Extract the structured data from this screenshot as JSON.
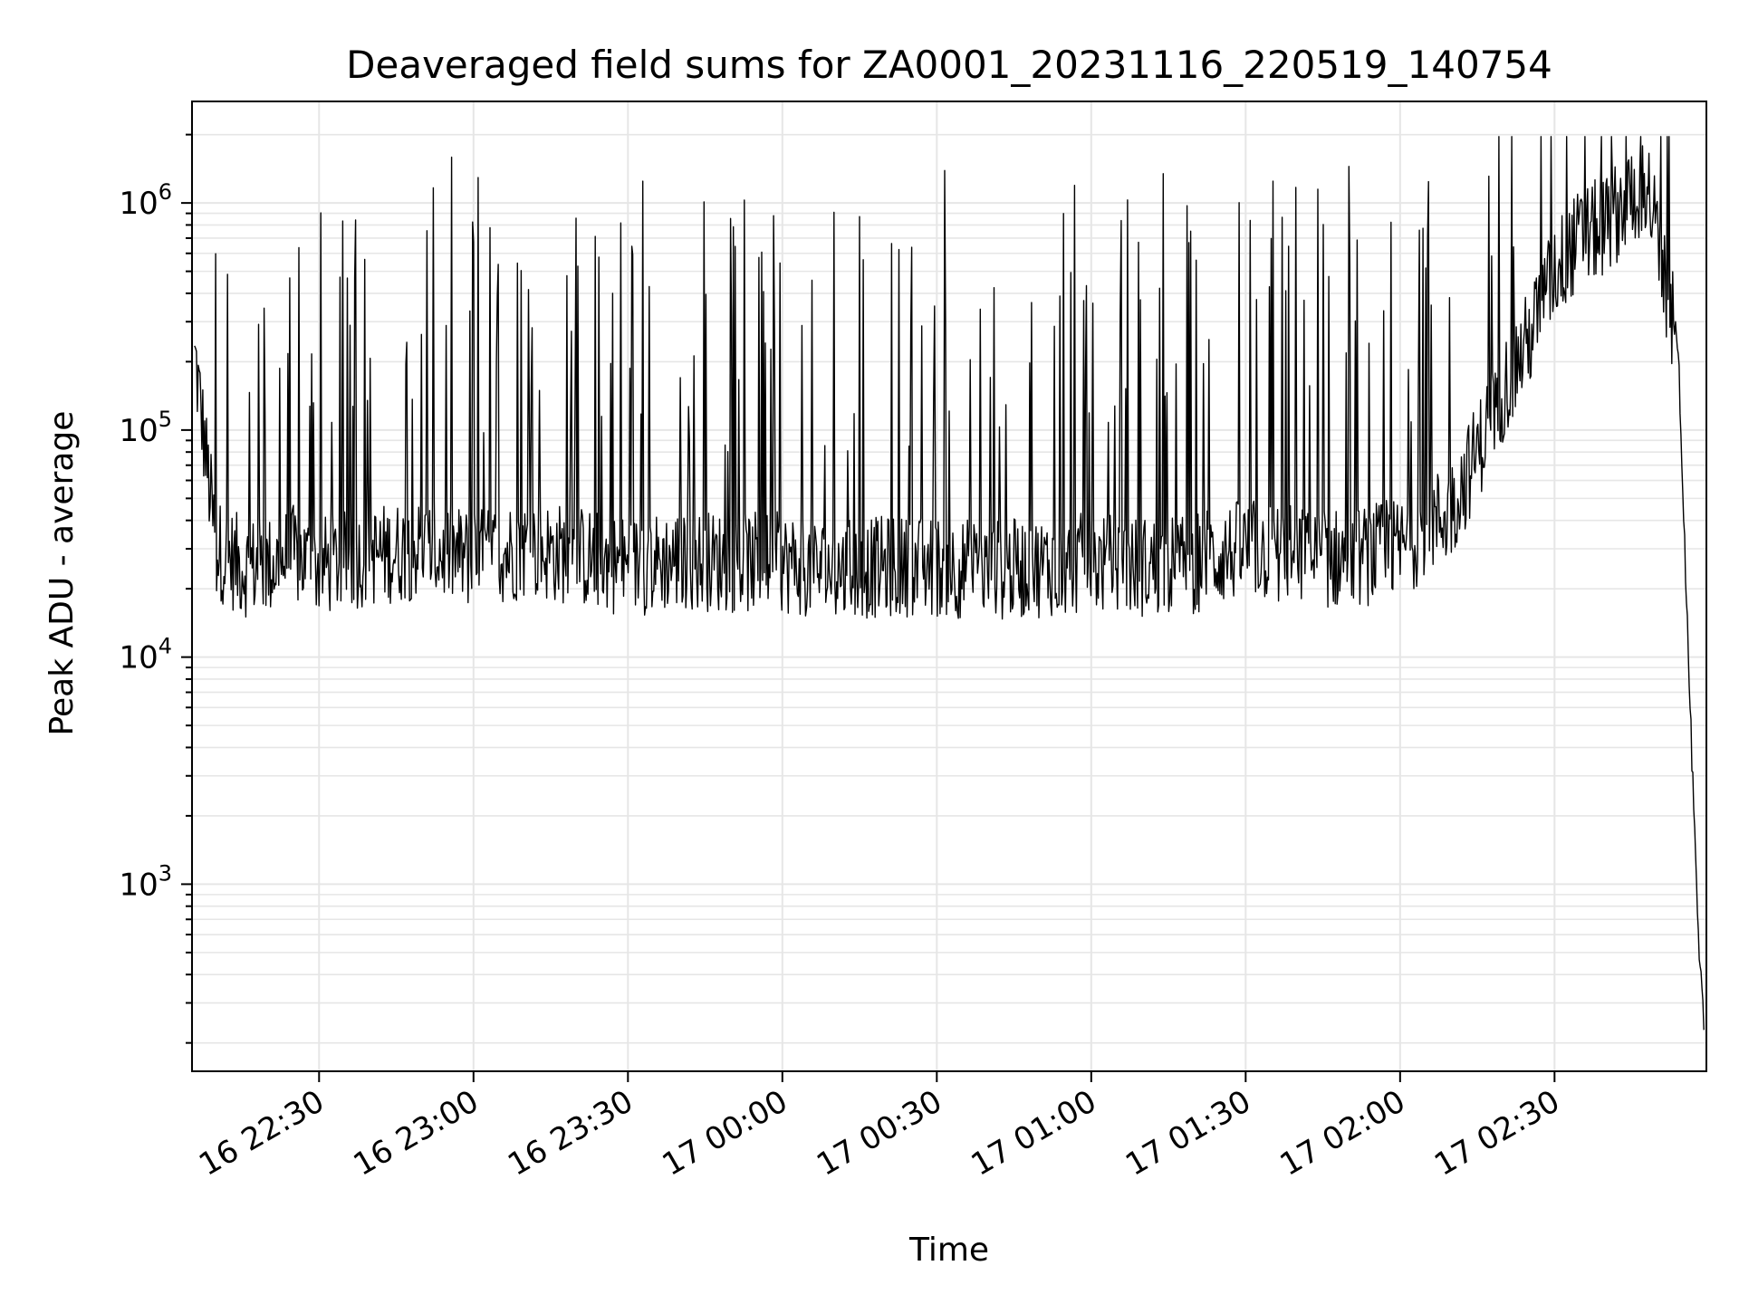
{
  "chart_data": {
    "type": "line",
    "title": "Deaveraged field sums for ZA0001_20231116_220519_140754",
    "xlabel": "Time",
    "ylabel": "Peak ADU - average",
    "yscale": "log",
    "ylim": [
      150,
      2800000
    ],
    "xlim": [
      "16 22:05:19",
      "17 02:59:30"
    ],
    "grid": true,
    "line_color": "#000000",
    "grid_color": "#e6e6e6",
    "x_ticks": [
      {
        "label": "16 22:30",
        "t": "16 22:30"
      },
      {
        "label": "16 23:00",
        "t": "16 23:00"
      },
      {
        "label": "16 23:30",
        "t": "16 23:30"
      },
      {
        "label": "17 00:00",
        "t": "17 00:00"
      },
      {
        "label": "17 00:30",
        "t": "17 00:30"
      },
      {
        "label": "17 01:00",
        "t": "17 01:00"
      },
      {
        "label": "17 01:30",
        "t": "17 01:30"
      },
      {
        "label": "17 02:00",
        "t": "17 02:00"
      },
      {
        "label": "17 02:30",
        "t": "17 02:30"
      }
    ],
    "y_ticks": [
      {
        "base": "10",
        "exp": "3",
        "value": 1000
      },
      {
        "base": "10",
        "exp": "4",
        "value": 10000
      },
      {
        "base": "10",
        "exp": "5",
        "value": 100000
      },
      {
        "base": "10",
        "exp": "6",
        "value": 1000000
      }
    ],
    "series": [
      {
        "x": [
          "16 22:06",
          "16 22:10",
          "16 22:15",
          "16 22:20",
          "16 22:25",
          "16 22:30",
          "16 22:40",
          "16 22:50",
          "16 23:00",
          "16 23:10",
          "16 23:20",
          "16 23:30",
          "16 23:40",
          "16 23:50",
          "17 00:00",
          "17 00:10",
          "17 00:20",
          "17 00:30",
          "17 00:40",
          "17 00:50",
          "17 01:00",
          "17 01:10",
          "17 01:20",
          "17 01:30",
          "17 01:40",
          "17 01:50",
          "17 02:00",
          "17 02:10",
          "17 02:15",
          "17 02:20",
          "17 02:25",
          "17 02:30",
          "17 02:35",
          "17 02:40",
          "17 02:45",
          "17 02:48",
          "17 02:50",
          "17 02:52",
          "17 02:54",
          "17 02:56",
          "17 02:58",
          "17 02:59"
        ],
        "y": [
          200000,
          30000,
          25000,
          25000,
          28000,
          25000,
          28000,
          30000,
          27000,
          30000,
          28000,
          25000,
          27000,
          26000,
          26000,
          24000,
          25000,
          25000,
          24000,
          25000,
          26000,
          25000,
          26000,
          30000,
          28000,
          27000,
          30000,
          45000,
          80000,
          150000,
          250000,
          500000,
          700000,
          800000,
          1100000,
          1200000,
          700000,
          350000,
          250000,
          10000,
          500,
          250
        ]
      }
    ]
  }
}
